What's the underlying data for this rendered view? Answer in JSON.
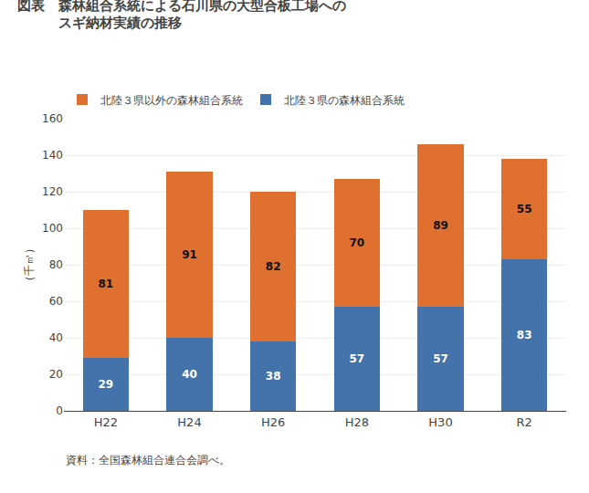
{
  "chart_data": {
    "type": "bar",
    "title": "図表　森林組合系統による石川県の大型合板工場への\n　　　スギ納材実績の推移",
    "ylabel": "（千㎥）",
    "annotations": [
      "資料：全国森林組合連合会調べ。"
    ],
    "categories": [
      "H22",
      "H24",
      "H26",
      "H28",
      "H30",
      "R2"
    ],
    "series": [
      {
        "name": "北陸３県の森林組合系統",
        "color": "#4472aa",
        "values": [
          29,
          40,
          38,
          57,
          57,
          83
        ]
      },
      {
        "name": "北陸３県以外の森林組合系統",
        "color": "#e07030",
        "values": [
          81,
          91,
          82,
          70,
          89,
          55
        ]
      }
    ],
    "stacked": true,
    "data_labels": true,
    "ylim": [
      0,
      160
    ],
    "yticks": [
      0,
      20,
      40,
      60,
      80,
      100,
      120,
      140,
      160
    ],
    "grid": true,
    "legend": "top"
  }
}
